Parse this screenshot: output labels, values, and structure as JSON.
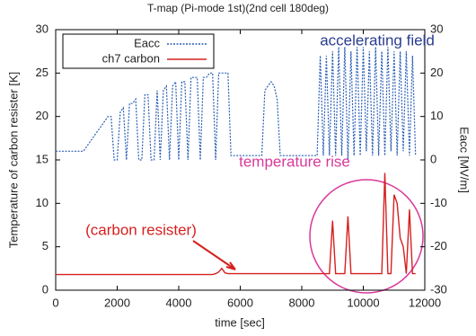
{
  "chart_data": {
    "type": "line",
    "title": "T-map (Pi-mode 1st)(2nd cell 180deg)",
    "x_label": "time [sec]",
    "y_label": "Temperature of carbon resister [K]",
    "y2_label": "Eacc [MV/m]",
    "annotations": [
      "accelerating field",
      "temperature rise",
      "(carbon resister)"
    ],
    "xlim": [
      0,
      12000
    ],
    "xticks": [
      0,
      2000,
      4000,
      6000,
      8000,
      10000,
      12000
    ],
    "ylim": [
      0,
      30
    ],
    "yticks": [
      0,
      5,
      10,
      15,
      20,
      25,
      30
    ],
    "y2lim": [
      -30,
      30
    ],
    "y2ticks": [
      -30,
      -20,
      -10,
      0,
      10,
      20,
      30
    ],
    "legend": "top-left",
    "x": [
      0,
      100,
      200,
      300,
      400,
      500,
      600,
      700,
      800,
      900,
      1000,
      1100,
      1200,
      1300,
      1400,
      1500,
      1600,
      1700,
      1800,
      1900,
      2000,
      2100,
      2200,
      2300,
      2400,
      2500,
      2600,
      2700,
      2800,
      2900,
      3000,
      3100,
      3200,
      3300,
      3400,
      3500,
      3600,
      3700,
      3800,
      3900,
      4000,
      4100,
      4200,
      4300,
      4400,
      4500,
      4600,
      4700,
      4800,
      4900,
      5000,
      5100,
      5200,
      5300,
      5400,
      5500,
      5600,
      5700,
      5800,
      5900,
      6000,
      6100,
      6200,
      6300,
      6400,
      6500,
      6600,
      6700,
      6800,
      6900,
      7000,
      7100,
      7200,
      7300,
      7400,
      7500,
      7600,
      7700,
      7800,
      7900,
      8000,
      8100,
      8200,
      8300,
      8400,
      8500,
      8600,
      8700,
      8800,
      8900,
      9000,
      9100,
      9200,
      9300,
      9400,
      9500,
      9600,
      9700,
      9800,
      9900,
      10000,
      10100,
      10200,
      10300,
      10400,
      10500,
      10600,
      10700,
      10800,
      10900,
      11000,
      11100,
      11200,
      11300,
      11400,
      11500,
      11600,
      11700
    ],
    "series": [
      {
        "name": "Eacc",
        "color": "#2b5fb4",
        "axis": "y2",
        "style": "dotted",
        "values": [
          2,
          2,
          2,
          2,
          2,
          2,
          2,
          2,
          2,
          2,
          3,
          4,
          5,
          6,
          7,
          8,
          9,
          10,
          10,
          0,
          0,
          11,
          12,
          0,
          13,
          13,
          14,
          0,
          0,
          15,
          15,
          0,
          0,
          16,
          0,
          16,
          17,
          0,
          17,
          18,
          0,
          18,
          18,
          0,
          19,
          19,
          19,
          0,
          19,
          19,
          20,
          20,
          0,
          20,
          20,
          20,
          20,
          1,
          1,
          1,
          1,
          1,
          1,
          1,
          1,
          1,
          1,
          1,
          16,
          17,
          18,
          17,
          14,
          1,
          1,
          1,
          1,
          1,
          1,
          1,
          1,
          1,
          1,
          1,
          1,
          1,
          24,
          1,
          24,
          1,
          25,
          1,
          26,
          1,
          26,
          0,
          25,
          1,
          26,
          1,
          26,
          2,
          25,
          1,
          26,
          1,
          25,
          1,
          26,
          2,
          25,
          1,
          25,
          2,
          25,
          1,
          24,
          1
        ]
      },
      {
        "name": "ch7 carbon",
        "color": "#d62020",
        "style": "solid",
        "values": [
          1.8,
          1.8,
          1.8,
          1.8,
          1.8,
          1.8,
          1.8,
          1.8,
          1.8,
          1.8,
          1.8,
          1.8,
          1.8,
          1.8,
          1.8,
          1.8,
          1.8,
          1.8,
          1.8,
          1.8,
          1.8,
          1.8,
          1.8,
          1.8,
          1.8,
          1.8,
          1.8,
          1.8,
          1.8,
          1.8,
          1.8,
          1.8,
          1.8,
          1.8,
          1.8,
          1.8,
          1.8,
          1.8,
          1.8,
          1.8,
          1.8,
          1.8,
          1.8,
          1.8,
          1.8,
          1.8,
          1.8,
          1.8,
          1.8,
          1.8,
          1.8,
          1.8,
          1.9,
          2.1,
          2.5,
          2.0,
          1.9,
          1.9,
          1.9,
          1.9,
          1.9,
          1.9,
          1.9,
          1.9,
          1.9,
          1.9,
          1.9,
          1.9,
          1.9,
          1.9,
          1.9,
          1.9,
          1.9,
          1.9,
          1.9,
          1.9,
          1.9,
          1.9,
          1.9,
          1.9,
          1.9,
          1.9,
          1.9,
          1.9,
          1.9,
          1.9,
          1.9,
          1.9,
          1.9,
          1.9,
          8,
          1.9,
          1.9,
          1.9,
          1.9,
          8.5,
          1.9,
          1.9,
          1.9,
          1.9,
          1.9,
          1.9,
          1.9,
          1.9,
          1.9,
          1.9,
          1.9,
          13.5,
          1.9,
          1.9,
          11,
          10,
          6,
          5,
          1.9,
          9.3,
          1.9,
          1.9
        ]
      }
    ]
  }
}
